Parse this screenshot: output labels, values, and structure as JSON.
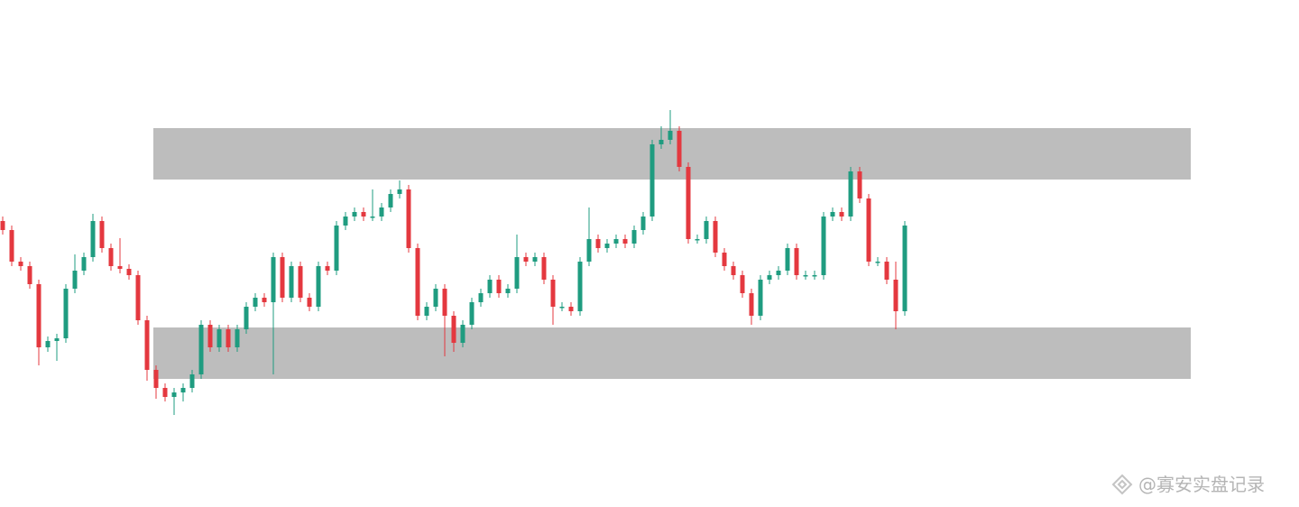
{
  "chart_data": {
    "type": "candlestick",
    "ylim": [
      0,
      562
    ],
    "up_color": "#1f9c80",
    "down_color": "#e4383f",
    "zone_color": "#bdbdbd",
    "zones": [
      {
        "low": 363,
        "high": 420
      },
      {
        "low": 142,
        "high": 199
      }
    ],
    "open": [
      317,
      307,
      272,
      267,
      247,
      177,
      184,
      187,
      242,
      262,
      277,
      317,
      287,
      267,
      264,
      257,
      207,
      152,
      132,
      122,
      127,
      132,
      147,
      202,
      177,
      197,
      177,
      197,
      222,
      232,
      227,
      277,
      232,
      267,
      232,
      222,
      267,
      262,
      312,
      322,
      327,
      322,
      322,
      332,
      347,
      352,
      287,
      212,
      222,
      242,
      212,
      182,
      202,
      227,
      237,
      252,
      237,
      242,
      277,
      272,
      277,
      252,
      222,
      222,
      217,
      272,
      297,
      287,
      292,
      297,
      292,
      307,
      322,
      402,
      407,
      417,
      377,
      297,
      297,
      317,
      282,
      267,
      257,
      237,
      212,
      252,
      257,
      262,
      287,
      257,
      257,
      257,
      322,
      327,
      322,
      372,
      342,
      272,
      272,
      252,
      217
    ],
    "high": [
      322,
      312,
      277,
      272,
      252,
      189,
      192,
      247,
      280,
      282,
      325,
      322,
      292,
      298,
      269,
      262,
      212,
      157,
      137,
      132,
      137,
      152,
      207,
      207,
      202,
      202,
      202,
      227,
      237,
      237,
      282,
      282,
      272,
      272,
      237,
      272,
      272,
      317,
      327,
      332,
      332,
      352,
      337,
      352,
      362,
      357,
      292,
      227,
      247,
      247,
      217,
      207,
      232,
      242,
      257,
      257,
      247,
      302,
      282,
      282,
      282,
      257,
      227,
      227,
      277,
      332,
      302,
      297,
      302,
      302,
      312,
      327,
      407,
      422,
      440,
      422,
      382,
      302,
      322,
      322,
      287,
      272,
      262,
      242,
      257,
      262,
      267,
      292,
      292,
      262,
      262,
      327,
      332,
      332,
      377,
      377,
      347,
      277,
      277,
      272,
      317
    ],
    "low": [
      302,
      267,
      262,
      242,
      157,
      172,
      162,
      182,
      237,
      257,
      272,
      282,
      262,
      259,
      252,
      202,
      140,
      120,
      117,
      102,
      117,
      127,
      142,
      172,
      172,
      172,
      172,
      192,
      217,
      222,
      147,
      227,
      227,
      227,
      217,
      217,
      257,
      257,
      307,
      317,
      317,
      317,
      317,
      327,
      342,
      282,
      207,
      207,
      217,
      167,
      172,
      177,
      197,
      222,
      232,
      232,
      232,
      237,
      267,
      267,
      247,
      202,
      217,
      212,
      212,
      267,
      282,
      282,
      287,
      287,
      287,
      302,
      317,
      397,
      402,
      372,
      292,
      292,
      292,
      277,
      262,
      252,
      232,
      202,
      207,
      247,
      252,
      257,
      252,
      252,
      252,
      252,
      317,
      317,
      317,
      337,
      267,
      267,
      247,
      197,
      212
    ],
    "close": [
      307,
      272,
      267,
      247,
      177,
      184,
      187,
      242,
      262,
      277,
      317,
      287,
      267,
      264,
      257,
      207,
      152,
      132,
      122,
      127,
      132,
      147,
      202,
      177,
      197,
      177,
      197,
      222,
      232,
      227,
      277,
      232,
      267,
      232,
      222,
      267,
      262,
      312,
      322,
      327,
      322,
      322,
      332,
      347,
      352,
      287,
      212,
      222,
      242,
      212,
      182,
      202,
      227,
      237,
      252,
      237,
      242,
      277,
      272,
      277,
      252,
      222,
      222,
      217,
      272,
      297,
      287,
      292,
      297,
      292,
      307,
      322,
      402,
      407,
      417,
      377,
      297,
      297,
      317,
      282,
      267,
      257,
      237,
      212,
      252,
      257,
      262,
      287,
      257,
      257,
      257,
      322,
      327,
      322,
      372,
      342,
      272,
      272,
      252,
      217,
      312
    ]
  },
  "watermark": "@寡安实盘记录"
}
